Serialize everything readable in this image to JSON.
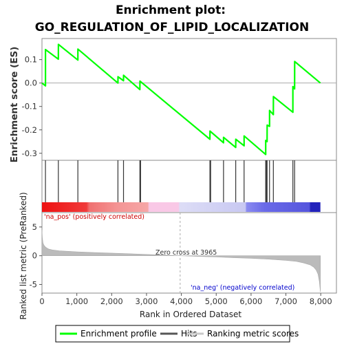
{
  "chart_data": {
    "type": "line",
    "title_lines": [
      "Enrichment plot:",
      "GO_REGULATION_OF_LIPID_LOCALIZATION"
    ],
    "top_panel": {
      "ylabel": "Enrichment score (ES)",
      "ylim": [
        -0.33,
        0.19
      ],
      "yticks": [
        0.1,
        0.0,
        -0.1,
        -0.2,
        -0.3
      ],
      "ytick_labels": [
        "0.1",
        "0.0",
        "-0.1",
        "-0.2",
        "-0.3"
      ],
      "series": [
        {
          "name": "Enrichment profile",
          "color": "#00ff00",
          "x": [
            0,
            100,
            101,
            470,
            471,
            1030,
            1031,
            2180,
            2181,
            2340,
            2341,
            2810,
            2811,
            4820,
            4821,
            5210,
            5211,
            5560,
            5561,
            5800,
            5801,
            6420,
            6421,
            6460,
            6461,
            6530,
            6531,
            6640,
            6641,
            7200,
            7201,
            7250,
            7251,
            7990
          ],
          "y": [
            0.0,
            -0.012,
            0.143,
            0.102,
            0.165,
            0.098,
            0.145,
            0.0,
            0.027,
            0.01,
            0.033,
            -0.028,
            0.008,
            -0.24,
            -0.205,
            -0.255,
            -0.232,
            -0.275,
            -0.24,
            -0.268,
            -0.226,
            -0.305,
            -0.245,
            -0.25,
            -0.18,
            -0.185,
            -0.117,
            -0.135,
            -0.058,
            -0.125,
            -0.015,
            -0.025,
            0.092,
            0.0
          ]
        }
      ]
    },
    "hits": {
      "name": "Hits",
      "positions": [
        100,
        470,
        1030,
        2180,
        2340,
        2810,
        2830,
        4820,
        4840,
        5210,
        5560,
        5800,
        6420,
        6440,
        6460,
        6530,
        6640,
        7200,
        7250
      ]
    },
    "heatbar": {
      "pos_label": "'na_pos' (positively correlated)",
      "neg_label": "'na_neg' (negatively correlated)"
    },
    "bottom_panel": {
      "ylabel": "Ranked list metric (PreRanked)",
      "ylim": [
        -6.5,
        7.5
      ],
      "yticks": [
        5,
        0,
        -5
      ],
      "ytick_labels": [
        "5",
        "0",
        "-5"
      ],
      "zero_cross_label": "Zero cross at 3965",
      "zero_cross": 3965,
      "series": [
        {
          "name": "Ranking metric scores",
          "color": "#c0c0c0",
          "x": [
            0,
            10,
            30,
            60,
            100,
            150,
            200,
            300,
            500,
            800,
            1000,
            1500,
            2000,
            2500,
            3000,
            3500,
            3965,
            4500,
            5000,
            5500,
            6000,
            6500,
            7000,
            7300,
            7500,
            7700,
            7800,
            7870,
            7920,
            7960,
            7990
          ],
          "y": [
            4.5,
            3.2,
            2.2,
            1.8,
            1.5,
            1.3,
            1.15,
            1.0,
            0.85,
            0.75,
            0.68,
            0.55,
            0.45,
            0.35,
            0.22,
            0.1,
            0.0,
            -0.12,
            -0.22,
            -0.35,
            -0.45,
            -0.6,
            -0.8,
            -1.0,
            -1.25,
            -1.6,
            -2.0,
            -2.5,
            -3.2,
            -4.5,
            -6.3
          ]
        }
      ]
    },
    "xlabel": "Rank in Ordered Dataset",
    "xlim": [
      0,
      8450
    ],
    "xticks": [
      0,
      1000,
      2000,
      3000,
      4000,
      5000,
      6000,
      7000,
      8000
    ],
    "xtick_labels": [
      "0",
      "1,000",
      "2,000",
      "3,000",
      "4,000",
      "5,000",
      "6,000",
      "7,000",
      "8,000"
    ],
    "legend": {
      "placement": "bottom",
      "entries": [
        {
          "label": "Enrichment profile",
          "color": "#00ff00"
        },
        {
          "label": "Hits",
          "color": "#555555"
        },
        {
          "label": "Ranking metric scores",
          "color": "#c8c8c8"
        }
      ]
    },
    "colors": {
      "pos_label": "#cc0000",
      "neg_label": "#0000cc",
      "zero_line": "#aaaaaa"
    }
  }
}
